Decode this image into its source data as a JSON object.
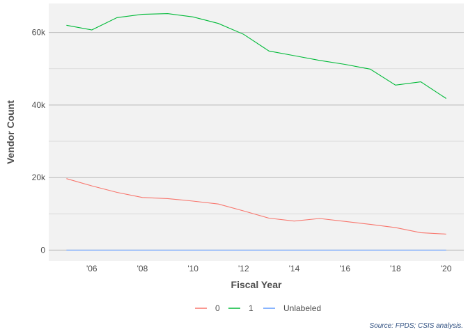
{
  "chart_data": {
    "type": "line",
    "xlabel": "Fiscal Year",
    "ylabel": "Vendor Count",
    "caption": "Source: FPDS; CSIS analysis.",
    "xlim": [
      2004.3,
      2020.7
    ],
    "ylim": [
      -3000,
      68000
    ],
    "x_ticks": [
      {
        "value": 2006,
        "label": "'06"
      },
      {
        "value": 2008,
        "label": "'08"
      },
      {
        "value": 2010,
        "label": "'10"
      },
      {
        "value": 2012,
        "label": "'12"
      },
      {
        "value": 2014,
        "label": "'14"
      },
      {
        "value": 2016,
        "label": "'16"
      },
      {
        "value": 2018,
        "label": "'18"
      },
      {
        "value": 2020,
        "label": "'20"
      }
    ],
    "y_ticks": [
      {
        "value": 0,
        "label": "0"
      },
      {
        "value": 20000,
        "label": "20k"
      },
      {
        "value": 40000,
        "label": "40k"
      },
      {
        "value": 60000,
        "label": "60k"
      }
    ],
    "y_minor_gridlines": [
      10000,
      30000,
      50000
    ],
    "grid": true,
    "legend_position": "bottom",
    "x": [
      2005,
      2006,
      2007,
      2008,
      2009,
      2010,
      2011,
      2012,
      2013,
      2014,
      2015,
      2016,
      2017,
      2018,
      2019,
      2020
    ],
    "series": [
      {
        "name": "0",
        "color": "#f8766d",
        "values": [
          19700,
          17700,
          15900,
          14500,
          14200,
          13500,
          12700,
          10800,
          8800,
          8000,
          8700,
          7900,
          7100,
          6200,
          4800,
          4400
        ]
      },
      {
        "name": "1",
        "color": "#00ba38",
        "values": [
          62000,
          60700,
          64100,
          65000,
          65200,
          64300,
          62500,
          59500,
          54900,
          53600,
          52300,
          51200,
          49900,
          45500,
          46400,
          41800
        ]
      },
      {
        "name": "Unlabeled",
        "color": "#619cff",
        "values": [
          0,
          0,
          0,
          0,
          0,
          0,
          0,
          0,
          0,
          0,
          0,
          0,
          0,
          0,
          0,
          0
        ]
      }
    ]
  }
}
